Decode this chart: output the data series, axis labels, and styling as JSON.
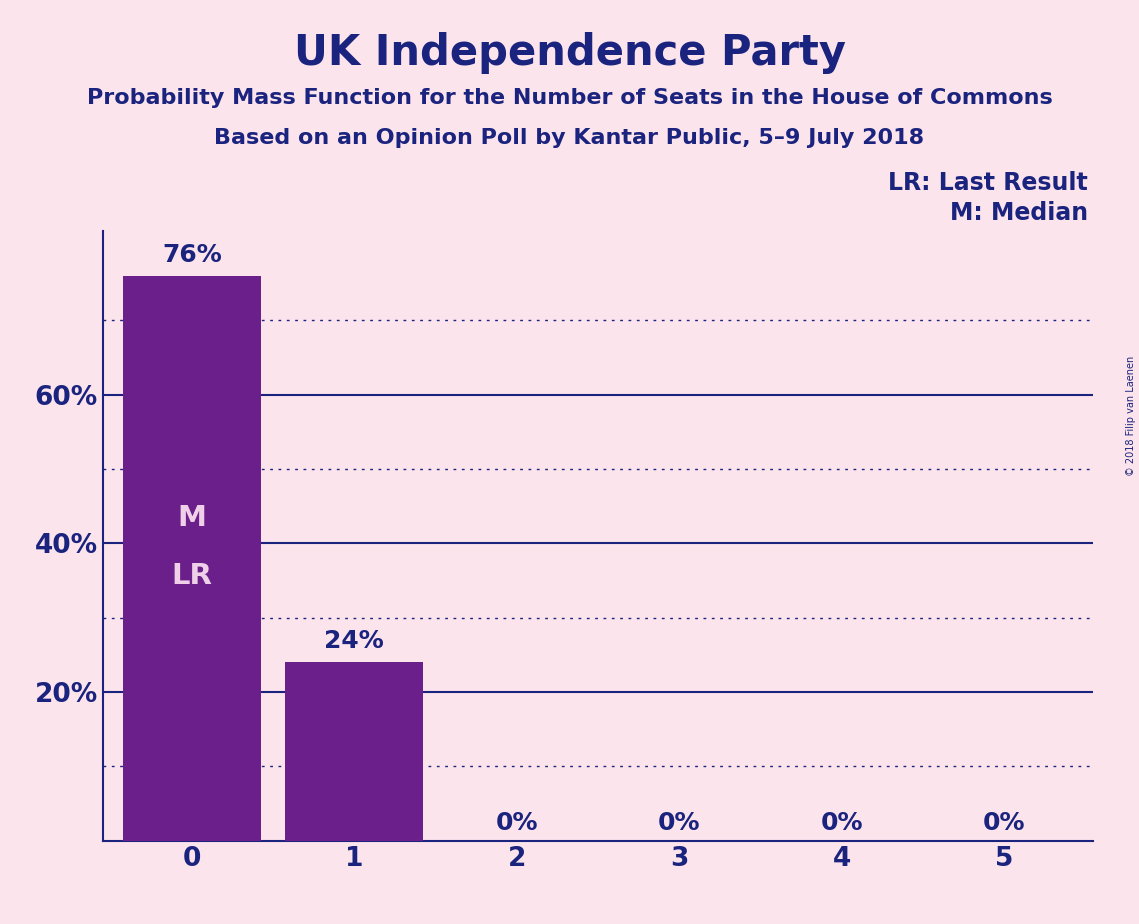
{
  "title": "UK Independence Party",
  "subtitle1": "Probability Mass Function for the Number of Seats in the House of Commons",
  "subtitle2": "Based on an Opinion Poll by Kantar Public, 5–9 July 2018",
  "copyright_text": "© 2018 Filip van Laenen",
  "x_values": [
    0,
    1,
    2,
    3,
    4,
    5
  ],
  "y_values": [
    0.76,
    0.24,
    0.0,
    0.0,
    0.0,
    0.0
  ],
  "bar_color": "#6a1f8a",
  "bar_labels": [
    "76%",
    "24%",
    "0%",
    "0%",
    "0%",
    "0%"
  ],
  "bar_label_color_top": "#1a237e",
  "bar_label_color_inside": "#fce4ec",
  "background_color": "#fce4ec",
  "title_color": "#1a237e",
  "subtitle_color": "#1a237e",
  "axis_color": "#1a237e",
  "ytick_labels": [
    "20%",
    "40%",
    "60%"
  ],
  "ytick_values": [
    0.2,
    0.4,
    0.6
  ],
  "ylim": [
    0,
    0.82
  ],
  "legend_lr": "LR: Last Result",
  "legend_m": "M: Median",
  "legend_color": "#1a237e",
  "marker_text_line1": "M",
  "marker_text_line2": "LR",
  "marker_color": "#f0d0e8",
  "solid_line_color": "#1a237e",
  "dotted_line_color": "#1a237e",
  "solid_yticks": [
    0.2,
    0.4,
    0.6
  ],
  "dotted_yticks": [
    0.1,
    0.3,
    0.5,
    0.7
  ],
  "title_fontsize": 30,
  "subtitle_fontsize": 16,
  "tick_fontsize": 19,
  "bar_label_fontsize": 18,
  "legend_fontsize": 17,
  "marker_fontsize": 21
}
